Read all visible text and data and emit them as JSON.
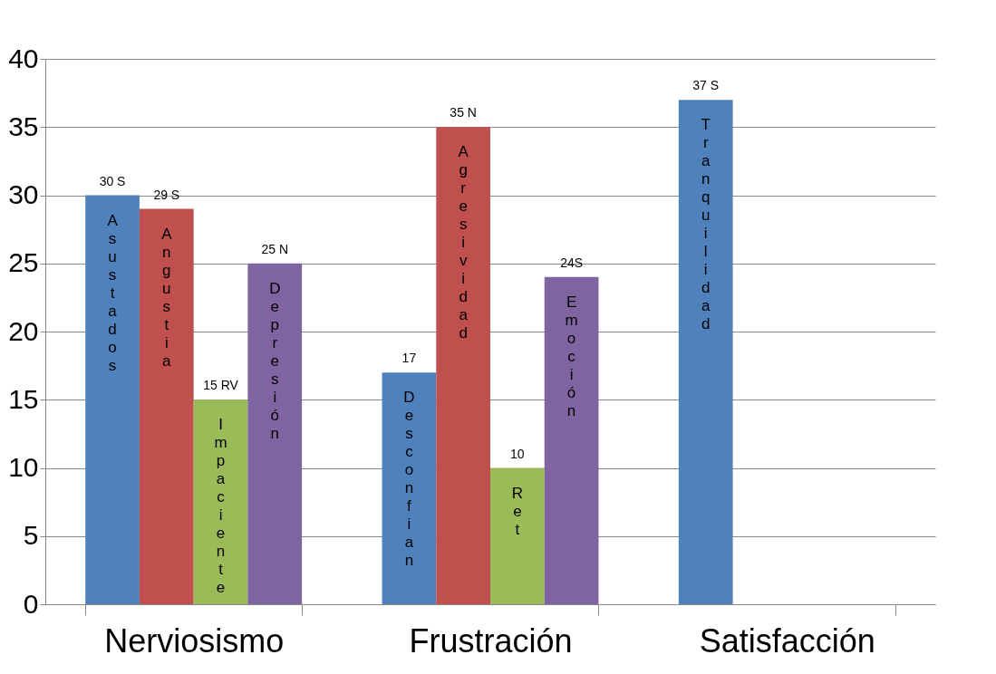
{
  "chart_data": {
    "type": "bar",
    "categories": [
      "Nerviosismo",
      "Frustración",
      "Satisfacción"
    ],
    "series": [
      {
        "color": "#4f81bd",
        "values": [
          30,
          17,
          37
        ],
        "value_labels": [
          "30 S",
          "17",
          "37 S"
        ]
      },
      {
        "color": "#c0504d",
        "values": [
          29,
          35,
          null
        ],
        "value_labels": [
          "29 S",
          "35 N",
          null
        ]
      },
      {
        "color": "#9bbb59",
        "values": [
          15,
          10,
          null
        ],
        "value_labels": [
          "15 RV",
          "10",
          null
        ]
      },
      {
        "color": "#8064a2",
        "values": [
          25,
          24,
          null
        ],
        "value_labels": [
          "25 N",
          "24S",
          null
        ]
      }
    ],
    "annotations": [
      "Asustados",
      "Angustia",
      "Impaciente",
      "Depresión",
      "Desconfian",
      "Agresividad",
      "Ret",
      "Emoción",
      "Tranquilidad"
    ],
    "ylim": [
      0,
      40
    ],
    "yticks": [
      0,
      5,
      10,
      15,
      20,
      25,
      30,
      35,
      40
    ],
    "grid": "y"
  }
}
